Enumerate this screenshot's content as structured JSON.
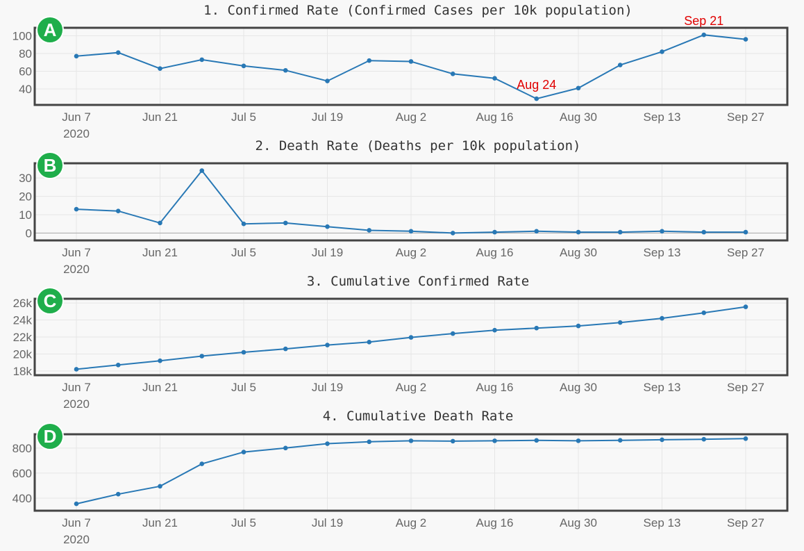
{
  "colors": {
    "line": "#2878b5",
    "annotation": "#e00000",
    "badge": "#1fae4b",
    "frame": "#444444"
  },
  "x_ticks": [
    "Jun 7",
    "Jun 21",
    "Jul 5",
    "Jul 19",
    "Aug 2",
    "Aug 16",
    "Aug 30",
    "Sep 13",
    "Sep 27"
  ],
  "x_year": "2020",
  "chart_data": [
    {
      "type": "line",
      "badge": "A",
      "title": "1. Confirmed Rate (Confirmed Cases per 10k population)",
      "x": [
        "2020-06-07",
        "2020-06-14",
        "2020-06-21",
        "2020-06-28",
        "2020-07-05",
        "2020-07-12",
        "2020-07-19",
        "2020-07-26",
        "2020-08-02",
        "2020-08-09",
        "2020-08-16",
        "2020-08-23",
        "2020-08-30",
        "2020-09-06",
        "2020-09-13",
        "2020-09-20",
        "2020-09-27"
      ],
      "values": [
        77,
        81,
        63,
        73,
        66,
        61,
        49,
        72,
        71,
        57,
        52,
        29,
        41,
        67,
        82,
        101,
        96
      ],
      "ylim": [
        22,
        109
      ],
      "yticks": [
        40,
        60,
        80,
        100
      ],
      "ytick_labels": [
        "40",
        "60",
        "80",
        "100"
      ],
      "annotations": [
        {
          "x": "2020-08-23",
          "text": "Aug 24"
        },
        {
          "x": "2020-09-20",
          "text": "Sep 21"
        }
      ]
    },
    {
      "type": "line",
      "badge": "B",
      "title": "2. Death Rate (Deaths per 10k population)",
      "x": [
        "2020-06-07",
        "2020-06-14",
        "2020-06-21",
        "2020-06-28",
        "2020-07-05",
        "2020-07-12",
        "2020-07-19",
        "2020-07-26",
        "2020-08-02",
        "2020-08-09",
        "2020-08-16",
        "2020-08-23",
        "2020-08-30",
        "2020-09-06",
        "2020-09-13",
        "2020-09-20",
        "2020-09-27"
      ],
      "values": [
        13,
        12,
        5.5,
        34,
        5,
        5.5,
        3.5,
        1.5,
        1,
        0,
        0.5,
        1,
        0.5,
        0.5,
        1,
        0.5,
        0.5
      ],
      "ylim": [
        -4,
        38
      ],
      "yticks": [
        0,
        10,
        20,
        30
      ],
      "ytick_labels": [
        "0",
        "10",
        "20",
        "30"
      ],
      "zero_line": true
    },
    {
      "type": "line",
      "badge": "C",
      "title": "3. Cumulative Confirmed Rate",
      "x": [
        "2020-06-07",
        "2020-06-14",
        "2020-06-21",
        "2020-06-28",
        "2020-07-05",
        "2020-07-12",
        "2020-07-19",
        "2020-07-26",
        "2020-08-02",
        "2020-08-09",
        "2020-08-16",
        "2020-08-23",
        "2020-08-30",
        "2020-09-06",
        "2020-09-13",
        "2020-09-20",
        "2020-09-27"
      ],
      "values": [
        18200,
        18700,
        19200,
        19750,
        20200,
        20600,
        21050,
        21400,
        21950,
        22400,
        22800,
        23050,
        23300,
        23700,
        24200,
        24850,
        25550
      ],
      "ylim": [
        17500,
        26500
      ],
      "yticks": [
        18000,
        20000,
        22000,
        24000,
        26000
      ],
      "ytick_labels": [
        "18k",
        "20k",
        "22k",
        "24k",
        "26k"
      ]
    },
    {
      "type": "line",
      "badge": "D",
      "title": "4. Cumulative Death Rate",
      "x": [
        "2020-06-07",
        "2020-06-14",
        "2020-06-21",
        "2020-06-28",
        "2020-07-05",
        "2020-07-12",
        "2020-07-19",
        "2020-07-26",
        "2020-08-02",
        "2020-08-09",
        "2020-08-16",
        "2020-08-23",
        "2020-08-30",
        "2020-09-06",
        "2020-09-13",
        "2020-09-20",
        "2020-09-27"
      ],
      "values": [
        355,
        432,
        495,
        674,
        768,
        800,
        835,
        850,
        858,
        855,
        858,
        861,
        858,
        862,
        866,
        870,
        875
      ],
      "ylim": [
        300,
        910
      ],
      "yticks": [
        400,
        600,
        800
      ],
      "ytick_labels": [
        "400",
        "600",
        "800"
      ]
    }
  ]
}
